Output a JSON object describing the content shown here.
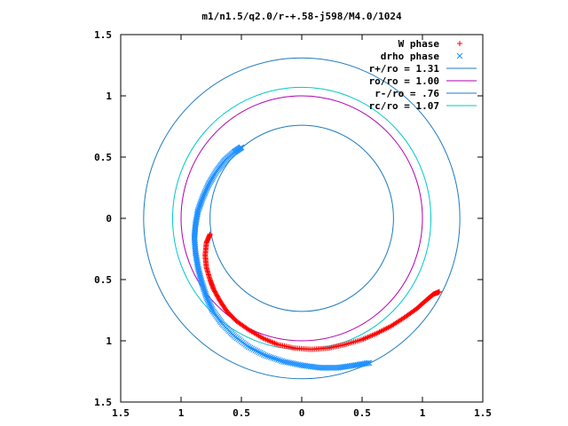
{
  "chart_data": {
    "type": "scatter",
    "title": "m1/n1.5/q2.0/r-+.58-j598/M4.0/1024",
    "xlabel": "",
    "ylabel": "",
    "xlim": [
      -1.5,
      1.5
    ],
    "ylim": [
      -1.5,
      1.5
    ],
    "x_ticks": [
      -1.5,
      -1,
      -0.5,
      0,
      0.5,
      1,
      1.5
    ],
    "y_ticks": [
      -1.5,
      -1,
      -0.5,
      0,
      0.5,
      1,
      1.5
    ],
    "x_tick_labels": [
      "1.5",
      "1",
      "0.5",
      "0",
      "0.5",
      "1",
      "1.5"
    ],
    "y_tick_labels": [
      "1.5",
      "1",
      "0.5",
      "0",
      "0.5",
      "1",
      "1.5"
    ],
    "grid": false,
    "legend_position": "top-right",
    "series": [
      {
        "name": "W phase",
        "kind": "points",
        "marker": "plus",
        "color": "#ff0000",
        "points": [
          [
            -0.76,
            -0.13
          ],
          [
            -0.79,
            -0.2
          ],
          [
            -0.8,
            -0.3
          ],
          [
            -0.79,
            -0.4
          ],
          [
            -0.76,
            -0.5
          ],
          [
            -0.73,
            -0.58
          ],
          [
            -0.68,
            -0.67
          ],
          [
            -0.62,
            -0.76
          ],
          [
            -0.54,
            -0.84
          ],
          [
            -0.44,
            -0.91
          ],
          [
            -0.32,
            -0.98
          ],
          [
            -0.2,
            -1.03
          ],
          [
            -0.06,
            -1.06
          ],
          [
            0.08,
            -1.07
          ],
          [
            0.22,
            -1.06
          ],
          [
            0.36,
            -1.03
          ],
          [
            0.5,
            -0.99
          ],
          [
            0.62,
            -0.94
          ],
          [
            0.74,
            -0.88
          ],
          [
            0.85,
            -0.81
          ],
          [
            0.95,
            -0.74
          ],
          [
            1.03,
            -0.67
          ],
          [
            1.09,
            -0.62
          ],
          [
            1.14,
            -0.6
          ]
        ]
      },
      {
        "name": "drho phase",
        "kind": "points",
        "marker": "cross",
        "color": "#1e90ff",
        "points": [
          [
            -0.5,
            0.58
          ],
          [
            -0.56,
            0.54
          ],
          [
            -0.64,
            0.47
          ],
          [
            -0.71,
            0.38
          ],
          [
            -0.77,
            0.28
          ],
          [
            -0.82,
            0.17
          ],
          [
            -0.86,
            0.06
          ],
          [
            -0.88,
            -0.05
          ],
          [
            -0.89,
            -0.16
          ],
          [
            -0.88,
            -0.28
          ],
          [
            -0.86,
            -0.4
          ],
          [
            -0.83,
            -0.52
          ],
          [
            -0.79,
            -0.64
          ],
          [
            -0.74,
            -0.75
          ],
          [
            -0.66,
            -0.86
          ],
          [
            -0.56,
            -0.96
          ],
          [
            -0.44,
            -1.05
          ],
          [
            -0.3,
            -1.12
          ],
          [
            -0.15,
            -1.17
          ],
          [
            0.0,
            -1.2
          ],
          [
            0.15,
            -1.22
          ],
          [
            0.3,
            -1.22
          ],
          [
            0.44,
            -1.2
          ],
          [
            0.56,
            -1.18
          ]
        ]
      },
      {
        "name": "r+/ro = 1.31",
        "kind": "circle",
        "radius": 1.31,
        "color": "#1f7bbf"
      },
      {
        "name": "ro/ro = 1.00",
        "kind": "circle",
        "radius": 1.0,
        "color": "#b000b0"
      },
      {
        "name": "r-/ro = .76",
        "kind": "circle",
        "radius": 0.76,
        "color": "#1f7bbf"
      },
      {
        "name": "rc/ro = 1.07",
        "kind": "circle",
        "radius": 1.07,
        "color": "#00c8c8"
      }
    ]
  }
}
